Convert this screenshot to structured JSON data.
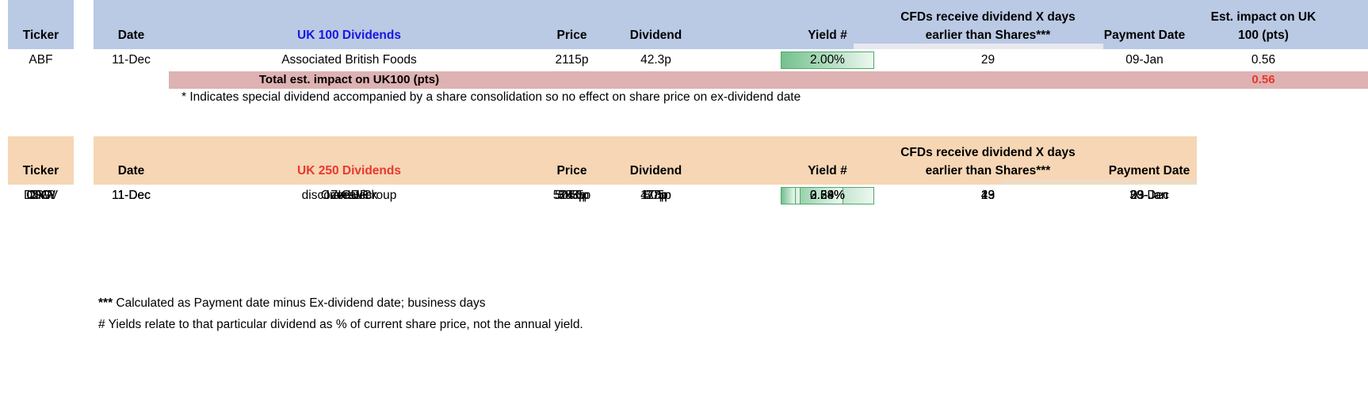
{
  "colors": {
    "table1_header_bg": "#bac9e4",
    "table2_header_bg": "#f6d6b4",
    "total_row_bg": "#deb2b2",
    "uk100_title_color": "#1717e3",
    "uk250_title_color": "#e93830",
    "total_value_color": "#e8352d",
    "yield_bar_fill": "#74c18d",
    "yield_bar_border": "#4fa86a"
  },
  "table1": {
    "ticker_header": "Ticker",
    "columns": {
      "date": "Date",
      "name": "UK 100 Dividends",
      "price": "Price",
      "dividend": "Dividend",
      "yield": "Yield #",
      "cfds_line1": "CFDs receive dividend X days",
      "cfds_line2": "earlier than Shares***",
      "payment": "Payment Date",
      "impact_line1": "Est. impact on UK",
      "impact_line2": "100 (pts)"
    },
    "rows": [
      {
        "ticker": "ABF",
        "date": "11-Dec",
        "name": "Associated British Foods",
        "price": "2115p",
        "dividend": "42.3p",
        "yield": "2.00%",
        "yield_bar_pct": 100,
        "cfd_days": "29",
        "payment_date": "09-Jan",
        "impact": "0.56"
      }
    ],
    "total": {
      "label": "Total est. impact on UK100 (pts)",
      "value": "0.56"
    },
    "footnote": "* Indicates special dividend accompanied by a share consolidation so no effect on share price on ex-dividend date"
  },
  "table2": {
    "ticker_header": "Ticker",
    "columns": {
      "date": "Date",
      "name": "UK 250 Dividends",
      "price": "Price",
      "dividend": "Dividend",
      "yield": "Yield #",
      "cfds_line1": "CFDs receive dividend X days",
      "cfds_line2": "earlier than Shares***",
      "payment": "Payment Date"
    },
    "rows": [
      {
        "ticker": "INVP",
        "date": "11-Dec",
        "name": "Investec",
        "price": "524.5p",
        "dividend": "17.5p",
        "yield": "3.34%",
        "yield_bar_pct": 100,
        "cfd_days": "19",
        "payment_date": "30-Dec"
      },
      {
        "ticker": "ZIG",
        "date": "11-Dec",
        "name": "ZIGUP",
        "price": "393p",
        "dividend": "8.8p",
        "yield": "2.24%",
        "yield_bar_pct": 67,
        "cfd_days": "29",
        "payment_date": "09-Jan"
      },
      {
        "ticker": "DSCV",
        "date": "11-Dec",
        "name": "discoverIE Group",
        "price": "585p",
        "dividend": "4.05p",
        "yield": "0.69%",
        "yield_bar_pct": 21,
        "cfd_days": "43",
        "payment_date": "23-Jan"
      },
      {
        "ticker": "CRW",
        "date": "11-Dec",
        "name": "Cranswick",
        "price": "5050p",
        "dividend": "27p",
        "yield": "0.53%",
        "yield_bar_pct": 16,
        "cfd_days": "43",
        "payment_date": "23-Jan"
      }
    ]
  },
  "footnotes": {
    "line1_marker": "***",
    "line1_text": " Calculated as Payment date minus Ex-dividend date; business days",
    "line2": "# Yields relate to that particular dividend as % of current share price, not the annual yield."
  }
}
